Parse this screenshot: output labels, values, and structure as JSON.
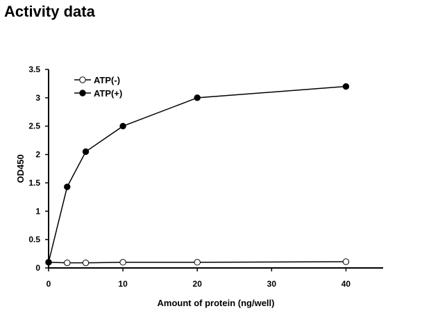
{
  "page": {
    "title": "Activity data"
  },
  "chart_data": {
    "type": "line",
    "title": "",
    "xlabel": "Amount of protein (ng/well)",
    "ylabel": "OD450",
    "xlim": [
      0,
      45
    ],
    "ylim": [
      0,
      3.5
    ],
    "x_ticks": [
      0,
      10,
      20,
      30,
      40
    ],
    "y_ticks": [
      0,
      0.5,
      1,
      1.5,
      2,
      2.5,
      3,
      3.5
    ],
    "grid": false,
    "legend_position": "top-left",
    "series": [
      {
        "name": "ATP(-)",
        "marker": "open-circle",
        "x": [
          0,
          2.5,
          5,
          10,
          20,
          40
        ],
        "y": [
          0.1,
          0.09,
          0.09,
          0.1,
          0.1,
          0.11
        ]
      },
      {
        "name": "ATP(+)",
        "marker": "filled-circle",
        "x": [
          0,
          2.5,
          5,
          10,
          20,
          40
        ],
        "y": [
          0.1,
          1.43,
          2.05,
          2.5,
          3.0,
          3.2
        ]
      }
    ]
  }
}
